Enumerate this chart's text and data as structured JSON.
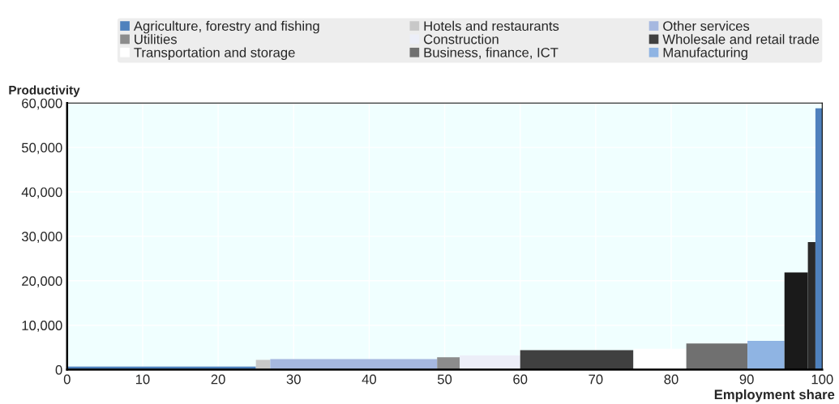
{
  "chart_data": {
    "type": "histogram",
    "ylabel": "Productivity",
    "xlabel": "Employment share",
    "bins": [
      0,
      25,
      26.9,
      49,
      52,
      60,
      75,
      82,
      90.1,
      95,
      98.1,
      99.1,
      100
    ],
    "series": [
      {
        "name": "Agriculture, forestry and fishing",
        "color": "#4f81bd",
        "values": [
          700,
          null,
          null,
          null,
          null,
          null,
          null,
          null,
          null,
          null,
          null,
          null
        ]
      },
      {
        "name": "Hotels and restaurants",
        "color": "#c8c8c8",
        "values": [
          null,
          2200,
          null,
          null,
          null,
          null,
          null,
          null,
          null,
          null,
          null,
          null
        ]
      },
      {
        "name": "Other services",
        "color": "#a6b8e0",
        "values": [
          null,
          null,
          2400,
          null,
          null,
          null,
          null,
          null,
          null,
          null,
          null,
          null
        ]
      },
      {
        "name": "Utilities",
        "color": "#8c8c8c",
        "values": [
          null,
          null,
          null,
          2800,
          null,
          null,
          null,
          null,
          null,
          null,
          null,
          null
        ]
      },
      {
        "name": "Construction",
        "color": "#eceef8",
        "values": [
          null,
          null,
          null,
          null,
          3200,
          null,
          null,
          null,
          null,
          null,
          null,
          null
        ]
      },
      {
        "name": "Wholesale and retail trade",
        "color": "#404040",
        "values": [
          null,
          null,
          null,
          null,
          null,
          4400,
          null,
          null,
          null,
          null,
          null,
          null
        ]
      },
      {
        "name": "Transportation and storage",
        "color": "#ffffff",
        "values": [
          null,
          null,
          null,
          null,
          null,
          null,
          4700,
          null,
          null,
          null,
          null,
          null
        ]
      },
      {
        "name": "Business, finance, ICT",
        "color": "#707070",
        "values": [
          null,
          null,
          null,
          null,
          null,
          null,
          null,
          5900,
          null,
          null,
          null,
          null
        ]
      },
      {
        "name": "Manufacturing",
        "color": "#8fb4e3",
        "values": [
          null,
          null,
          null,
          null,
          null,
          null,
          null,
          null,
          6500,
          null,
          null,
          null
        ]
      },
      {
        "color": "#1a1a1a",
        "values": [
          null,
          null,
          null,
          null,
          null,
          null,
          null,
          null,
          null,
          21900,
          null,
          null
        ]
      },
      {
        "color": "#2a2a2a",
        "values": [
          null,
          null,
          null,
          null,
          null,
          null,
          null,
          null,
          null,
          null,
          28700,
          null
        ]
      },
      {
        "color": "#4f81bd",
        "values": [
          null,
          null,
          null,
          null,
          null,
          null,
          null,
          null,
          null,
          null,
          null,
          58800
        ]
      }
    ],
    "xlim": [
      0,
      100
    ],
    "xticks": [
      0,
      10,
      20,
      30,
      40,
      50,
      60,
      70,
      80,
      90,
      100
    ],
    "ylim": [
      0,
      60000
    ],
    "yticks": [
      {
        "value": 0,
        "label": "0"
      },
      {
        "value": 10000,
        "label": "10,000"
      },
      {
        "value": 20000,
        "label": "20,000"
      },
      {
        "value": 30000,
        "label": "30,000"
      },
      {
        "value": 40000,
        "label": "40,000"
      },
      {
        "value": 50000,
        "label": "50,000"
      },
      {
        "value": 60000,
        "label": "60,000"
      }
    ],
    "grid": true,
    "legend": "top"
  }
}
